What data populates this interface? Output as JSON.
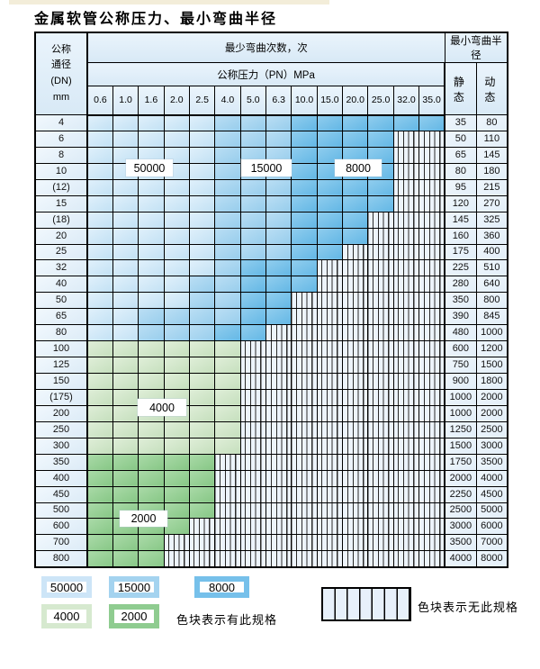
{
  "title": "金属软管公称压力、最小弯曲半径",
  "table": {
    "header": {
      "dn_lines": [
        "公称",
        "通径",
        "(DN)",
        "mm"
      ],
      "cycles_label": "最少弯曲次数，次",
      "pressure_label": "公称压力（PN）MPa",
      "radius_label": "最小弯曲半径",
      "static_label": "静 态",
      "dynamic_label": "动 态",
      "pressure_columns": [
        "0.6",
        "1.0",
        "1.6",
        "2.0",
        "2.5",
        "4.0",
        "5.0",
        "6.3",
        "10.0",
        "15.0",
        "20.0",
        "25.0",
        "32.0",
        "35.0"
      ]
    },
    "rows": [
      {
        "dn": "4",
        "cells": [
          "50000",
          "50000",
          "50000",
          "50000",
          "50000",
          "15000",
          "15000",
          "15000",
          "8000",
          "8000",
          "8000",
          "8000",
          "8000",
          "8000"
        ],
        "static": "35",
        "dynamic": "80"
      },
      {
        "dn": "6",
        "cells": [
          "50000",
          "50000",
          "50000",
          "50000",
          "50000",
          "15000",
          "15000",
          "15000",
          "8000",
          "8000",
          "8000",
          "8000",
          "none",
          "none"
        ],
        "static": "50",
        "dynamic": "110"
      },
      {
        "dn": "8",
        "cells": [
          "50000",
          "50000",
          "50000",
          "50000",
          "50000",
          "15000",
          "15000",
          "15000",
          "8000",
          "8000",
          "8000",
          "8000",
          "none",
          "none"
        ],
        "static": "65",
        "dynamic": "145"
      },
      {
        "dn": "10",
        "cells": [
          "50000",
          "50000",
          "50000",
          "50000",
          "50000",
          "15000",
          "15000",
          "15000",
          "8000",
          "8000",
          "8000",
          "8000",
          "none",
          "none"
        ],
        "static": "80",
        "dynamic": "180"
      },
      {
        "dn": "(12)",
        "cells": [
          "50000",
          "50000",
          "50000",
          "50000",
          "50000",
          "15000",
          "15000",
          "15000",
          "8000",
          "8000",
          "8000",
          "8000",
          "none",
          "none"
        ],
        "static": "95",
        "dynamic": "215"
      },
      {
        "dn": "15",
        "cells": [
          "50000",
          "50000",
          "50000",
          "50000",
          "50000",
          "15000",
          "15000",
          "15000",
          "8000",
          "8000",
          "8000",
          "8000",
          "none",
          "none"
        ],
        "static": "120",
        "dynamic": "270"
      },
      {
        "dn": "(18)",
        "cells": [
          "50000",
          "50000",
          "50000",
          "50000",
          "50000",
          "15000",
          "15000",
          "15000",
          "8000",
          "8000",
          "8000",
          "none",
          "none",
          "none"
        ],
        "static": "145",
        "dynamic": "325"
      },
      {
        "dn": "20",
        "cells": [
          "50000",
          "50000",
          "50000",
          "50000",
          "50000",
          "15000",
          "15000",
          "15000",
          "8000",
          "8000",
          "8000",
          "none",
          "none",
          "none"
        ],
        "static": "160",
        "dynamic": "360"
      },
      {
        "dn": "25",
        "cells": [
          "50000",
          "50000",
          "50000",
          "50000",
          "50000",
          "15000",
          "15000",
          "15000",
          "8000",
          "8000",
          "none",
          "none",
          "none",
          "none"
        ],
        "static": "175",
        "dynamic": "400"
      },
      {
        "dn": "32",
        "cells": [
          "50000",
          "50000",
          "50000",
          "50000",
          "50000",
          "15000",
          "8000",
          "8000",
          "8000",
          "none",
          "none",
          "none",
          "none",
          "none"
        ],
        "static": "225",
        "dynamic": "510"
      },
      {
        "dn": "40",
        "cells": [
          "50000",
          "50000",
          "50000",
          "50000",
          "15000",
          "15000",
          "8000",
          "8000",
          "8000",
          "none",
          "none",
          "none",
          "none",
          "none"
        ],
        "static": "280",
        "dynamic": "640"
      },
      {
        "dn": "50",
        "cells": [
          "50000",
          "50000",
          "50000",
          "50000",
          "15000",
          "15000",
          "8000",
          "8000",
          "none",
          "none",
          "none",
          "none",
          "none",
          "none"
        ],
        "static": "350",
        "dynamic": "800"
      },
      {
        "dn": "65",
        "cells": [
          "50000",
          "50000",
          "15000",
          "15000",
          "15000",
          "15000",
          "8000",
          "8000",
          "none",
          "none",
          "none",
          "none",
          "none",
          "none"
        ],
        "static": "390",
        "dynamic": "845"
      },
      {
        "dn": "80",
        "cells": [
          "50000",
          "50000",
          "15000",
          "15000",
          "15000",
          "8000",
          "8000",
          "none",
          "none",
          "none",
          "none",
          "none",
          "none",
          "none"
        ],
        "static": "480",
        "dynamic": "1000"
      },
      {
        "dn": "100",
        "cells": [
          "4000",
          "4000",
          "4000",
          "4000",
          "4000",
          "4000",
          "none",
          "none",
          "none",
          "none",
          "none",
          "none",
          "none",
          "none"
        ],
        "static": "600",
        "dynamic": "1200"
      },
      {
        "dn": "125",
        "cells": [
          "4000",
          "4000",
          "4000",
          "4000",
          "4000",
          "4000",
          "none",
          "none",
          "none",
          "none",
          "none",
          "none",
          "none",
          "none"
        ],
        "static": "750",
        "dynamic": "1500"
      },
      {
        "dn": "150",
        "cells": [
          "4000",
          "4000",
          "4000",
          "4000",
          "4000",
          "4000",
          "none",
          "none",
          "none",
          "none",
          "none",
          "none",
          "none",
          "none"
        ],
        "static": "900",
        "dynamic": "1800"
      },
      {
        "dn": "(175)",
        "cells": [
          "4000",
          "4000",
          "4000",
          "4000",
          "4000",
          "4000",
          "none",
          "none",
          "none",
          "none",
          "none",
          "none",
          "none",
          "none"
        ],
        "static": "1000",
        "dynamic": "2000"
      },
      {
        "dn": "200",
        "cells": [
          "4000",
          "4000",
          "4000",
          "4000",
          "4000",
          "4000",
          "none",
          "none",
          "none",
          "none",
          "none",
          "none",
          "none",
          "none"
        ],
        "static": "1000",
        "dynamic": "2000"
      },
      {
        "dn": "250",
        "cells": [
          "4000",
          "4000",
          "4000",
          "4000",
          "4000",
          "4000",
          "none",
          "none",
          "none",
          "none",
          "none",
          "none",
          "none",
          "none"
        ],
        "static": "1250",
        "dynamic": "2500"
      },
      {
        "dn": "300",
        "cells": [
          "4000",
          "4000",
          "4000",
          "4000",
          "4000",
          "4000",
          "none",
          "none",
          "none",
          "none",
          "none",
          "none",
          "none",
          "none"
        ],
        "static": "1500",
        "dynamic": "3000"
      },
      {
        "dn": "350",
        "cells": [
          "2000",
          "2000",
          "2000",
          "2000",
          "2000",
          "none",
          "none",
          "none",
          "none",
          "none",
          "none",
          "none",
          "none",
          "none"
        ],
        "static": "1750",
        "dynamic": "3500"
      },
      {
        "dn": "400",
        "cells": [
          "2000",
          "2000",
          "2000",
          "2000",
          "2000",
          "none",
          "none",
          "none",
          "none",
          "none",
          "none",
          "none",
          "none",
          "none"
        ],
        "static": "2000",
        "dynamic": "4000"
      },
      {
        "dn": "450",
        "cells": [
          "2000",
          "2000",
          "2000",
          "2000",
          "2000",
          "none",
          "none",
          "none",
          "none",
          "none",
          "none",
          "none",
          "none",
          "none"
        ],
        "static": "2250",
        "dynamic": "4500"
      },
      {
        "dn": "500",
        "cells": [
          "2000",
          "2000",
          "2000",
          "2000",
          "2000",
          "none",
          "none",
          "none",
          "none",
          "none",
          "none",
          "none",
          "none",
          "none"
        ],
        "static": "2500",
        "dynamic": "5000"
      },
      {
        "dn": "600",
        "cells": [
          "2000",
          "2000",
          "2000",
          "2000",
          "none",
          "none",
          "none",
          "none",
          "none",
          "none",
          "none",
          "none",
          "none",
          "none"
        ],
        "static": "3000",
        "dynamic": "6000"
      },
      {
        "dn": "700",
        "cells": [
          "2000",
          "2000",
          "2000",
          "none",
          "none",
          "none",
          "none",
          "none",
          "none",
          "none",
          "none",
          "none",
          "none",
          "none"
        ],
        "static": "3500",
        "dynamic": "7000"
      },
      {
        "dn": "800",
        "cells": [
          "2000",
          "2000",
          "2000",
          "none",
          "none",
          "none",
          "none",
          "none",
          "none",
          "none",
          "none",
          "none",
          "none",
          "none"
        ],
        "static": "4000",
        "dynamic": "8000"
      }
    ]
  },
  "zone_labels": {
    "z50000": "50000",
    "z15000": "15000",
    "z8000": "8000",
    "z4000": "4000",
    "z2000": "2000"
  },
  "legend": {
    "items": [
      {
        "value": "50000",
        "color": "#cde5f7"
      },
      {
        "value": "15000",
        "color": "#a4d3ef"
      },
      {
        "value": "8000",
        "color": "#76c0ea"
      },
      {
        "value": "4000",
        "color": "#d6e9cf"
      },
      {
        "value": "2000",
        "color": "#8fcc90"
      }
    ],
    "has_spec_note": "色块表示有此规格",
    "no_spec_note": "色块表示无此规格"
  },
  "colors": {
    "zone_50000": "#cde5f7",
    "zone_15000": "#a4d3ef",
    "zone_8000": "#76c0ea",
    "zone_4000": "#d6e9cf",
    "zone_2000": "#8fcc90",
    "no_spec_bg": "#edf4fb",
    "header_bg": "#dfedf8",
    "grid_line": "#000000"
  }
}
